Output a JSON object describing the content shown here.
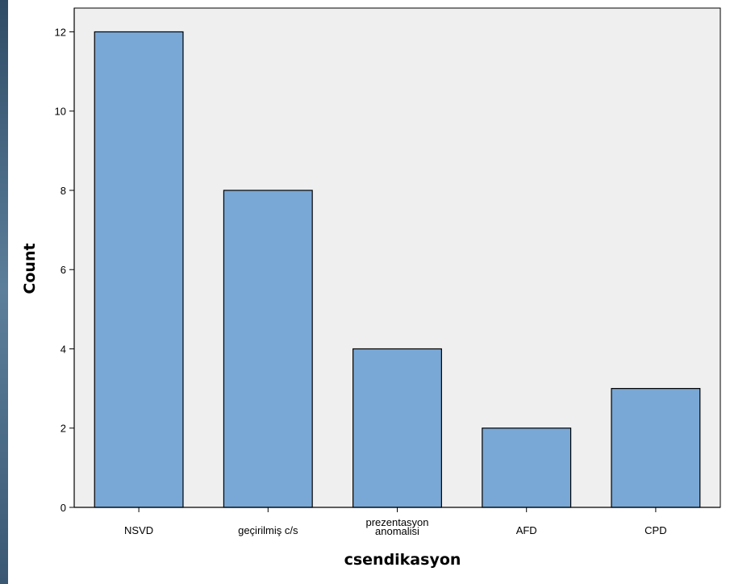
{
  "chart_data": {
    "type": "bar",
    "categories": [
      [
        "NSVD"
      ],
      [
        "geçirilmiş c/s"
      ],
      [
        "prezentasyon",
        "anomalisi"
      ],
      [
        "AFD"
      ],
      [
        "CPD"
      ]
    ],
    "values": [
      12,
      8,
      4,
      2,
      3
    ],
    "xlabel": "csendikasyon",
    "ylabel": "Count",
    "ylim": [
      0,
      12.6
    ],
    "yticks": [
      0,
      2,
      4,
      6,
      8,
      10,
      12
    ],
    "grid": false,
    "legend": "none",
    "colors": {
      "bar_fill": "#79a8d6",
      "bar_stroke": "#000000",
      "plot_background": "#efefef",
      "axis": "#000000"
    }
  }
}
